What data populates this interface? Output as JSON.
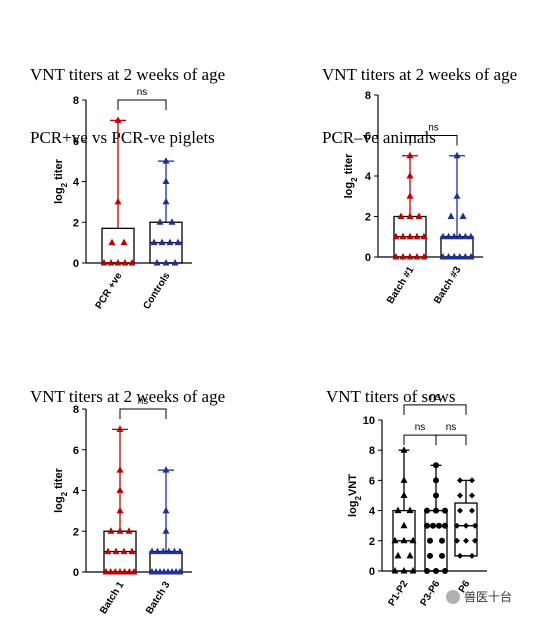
{
  "panels": [
    {
      "title_line1": "VNT titers at 2 weeks of age",
      "title_line2": "PCR+ve vs PCR-ve piglets"
    },
    {
      "title_line1": "VNT titers at 2 weeks of age",
      "title_line2": "PCR–ve animals"
    },
    {
      "title_line1": "VNT titers at 2 weeks of age",
      "title_line2": ""
    },
    {
      "title_line1": "VNT titers of sows",
      "title_line2": ""
    }
  ],
  "watermark": {
    "text": "兽医十台"
  },
  "chart_data": [
    {
      "type": "box",
      "ylabel": "log2 titer",
      "ylim": [
        0,
        8
      ],
      "yticks": [
        0,
        2,
        4,
        6,
        8
      ],
      "categories": [
        "PCR +ve",
        "Controls"
      ],
      "boxes": [
        {
          "name": "PCR +ve",
          "min": 0,
          "q1": 0,
          "median": 0,
          "q3": 1.7,
          "max": 7,
          "color": "#c00000",
          "marker": "triangle",
          "points": [
            7,
            3,
            1,
            1,
            0,
            0,
            0,
            0,
            0
          ]
        },
        {
          "name": "Controls",
          "min": 0,
          "q1": 0,
          "median": 1,
          "q3": 2,
          "max": 5,
          "color": "#1f2f9a",
          "marker": "triangle",
          "points": [
            5,
            4,
            3,
            2,
            2,
            1,
            1,
            1,
            1,
            0,
            0,
            0
          ]
        }
      ],
      "comparisons": [
        {
          "from": 0,
          "to": 1,
          "label": "ns",
          "y": 8
        }
      ]
    },
    {
      "type": "box",
      "ylabel": "log2 titer",
      "ylim": [
        0,
        8
      ],
      "yticks": [
        0,
        2,
        4,
        6,
        8
      ],
      "categories": [
        "Batch #1",
        "Batch #3"
      ],
      "boxes": [
        {
          "name": "Batch #1",
          "min": 0,
          "q1": 0,
          "median": 1,
          "q3": 2,
          "max": 5,
          "color": "#c00000",
          "marker": "triangle",
          "points": [
            5,
            4,
            3,
            2,
            2,
            2,
            1,
            1,
            1,
            1,
            1,
            0,
            0,
            0,
            0,
            0
          ]
        },
        {
          "name": "Batch #3",
          "min": 0,
          "q1": 0,
          "median": 1,
          "q3": 1,
          "max": 5,
          "color": "#1f2f9a",
          "marker": "triangle",
          "points": [
            5,
            3,
            2,
            2,
            1,
            1,
            1,
            1,
            1,
            1,
            0,
            0,
            0,
            0,
            0,
            0
          ]
        }
      ],
      "comparisons": [
        {
          "from": 0,
          "to": 1,
          "label": "ns",
          "y": 6
        }
      ]
    },
    {
      "type": "box",
      "ylabel": "log2 titer",
      "ylim": [
        0,
        8
      ],
      "yticks": [
        0,
        2,
        4,
        6,
        8
      ],
      "categories": [
        "Batch 1",
        "Batch 3"
      ],
      "boxes": [
        {
          "name": "Batch 1",
          "min": 0,
          "q1": 0,
          "median": 1,
          "q3": 2,
          "max": 7,
          "color": "#c00000",
          "marker": "triangle",
          "points": [
            7,
            5,
            4,
            3,
            2,
            2,
            2,
            1,
            1,
            1,
            1,
            0,
            0,
            0,
            0,
            0,
            0,
            0
          ]
        },
        {
          "name": "Batch 3",
          "min": 0,
          "q1": 0,
          "median": 0,
          "q3": 1,
          "max": 5,
          "color": "#1f2f9a",
          "marker": "triangle",
          "points": [
            5,
            3,
            2,
            1,
            1,
            1,
            1,
            1,
            1,
            0,
            0,
            0,
            0,
            0,
            0,
            0,
            0
          ]
        }
      ],
      "comparisons": [
        {
          "from": 0,
          "to": 1,
          "label": "ns",
          "y": 8
        }
      ]
    },
    {
      "type": "box",
      "ylabel": "log2 VNT",
      "ylim": [
        0,
        10
      ],
      "yticks": [
        0,
        2,
        4,
        6,
        8,
        10
      ],
      "categories": [
        "P1-P2",
        "P3-P6",
        "P6"
      ],
      "boxes": [
        {
          "name": "P1-P2",
          "min": 0,
          "q1": 0,
          "median": 2,
          "q3": 4,
          "max": 8,
          "color": "#000000",
          "marker": "triangle",
          "points": [
            8,
            6,
            5,
            4,
            4,
            3,
            2,
            2,
            2,
            1,
            1,
            0,
            0,
            0
          ]
        },
        {
          "name": "P3-P6",
          "min": 0,
          "q1": 0,
          "median": 3,
          "q3": 4,
          "max": 7,
          "color": "#000000",
          "marker": "circle",
          "points": [
            7,
            6,
            5,
            4,
            4,
            4,
            3,
            3,
            3,
            3,
            2,
            2,
            1,
            1,
            0,
            0,
            0
          ]
        },
        {
          "name": "P6",
          "min": 1,
          "q1": 1,
          "median": 3,
          "q3": 4.5,
          "max": 6,
          "color": "#000000",
          "marker": "diamond",
          "points": [
            6,
            6,
            5,
            5,
            4,
            4,
            3,
            3,
            3,
            2,
            2,
            2,
            1,
            1
          ]
        }
      ],
      "comparisons": [
        {
          "from": 0,
          "to": 1,
          "label": "ns",
          "y": 9
        },
        {
          "from": 1,
          "to": 2,
          "label": "ns",
          "y": 9
        },
        {
          "from": 0,
          "to": 2,
          "label": "ns",
          "y": 11
        }
      ]
    }
  ]
}
